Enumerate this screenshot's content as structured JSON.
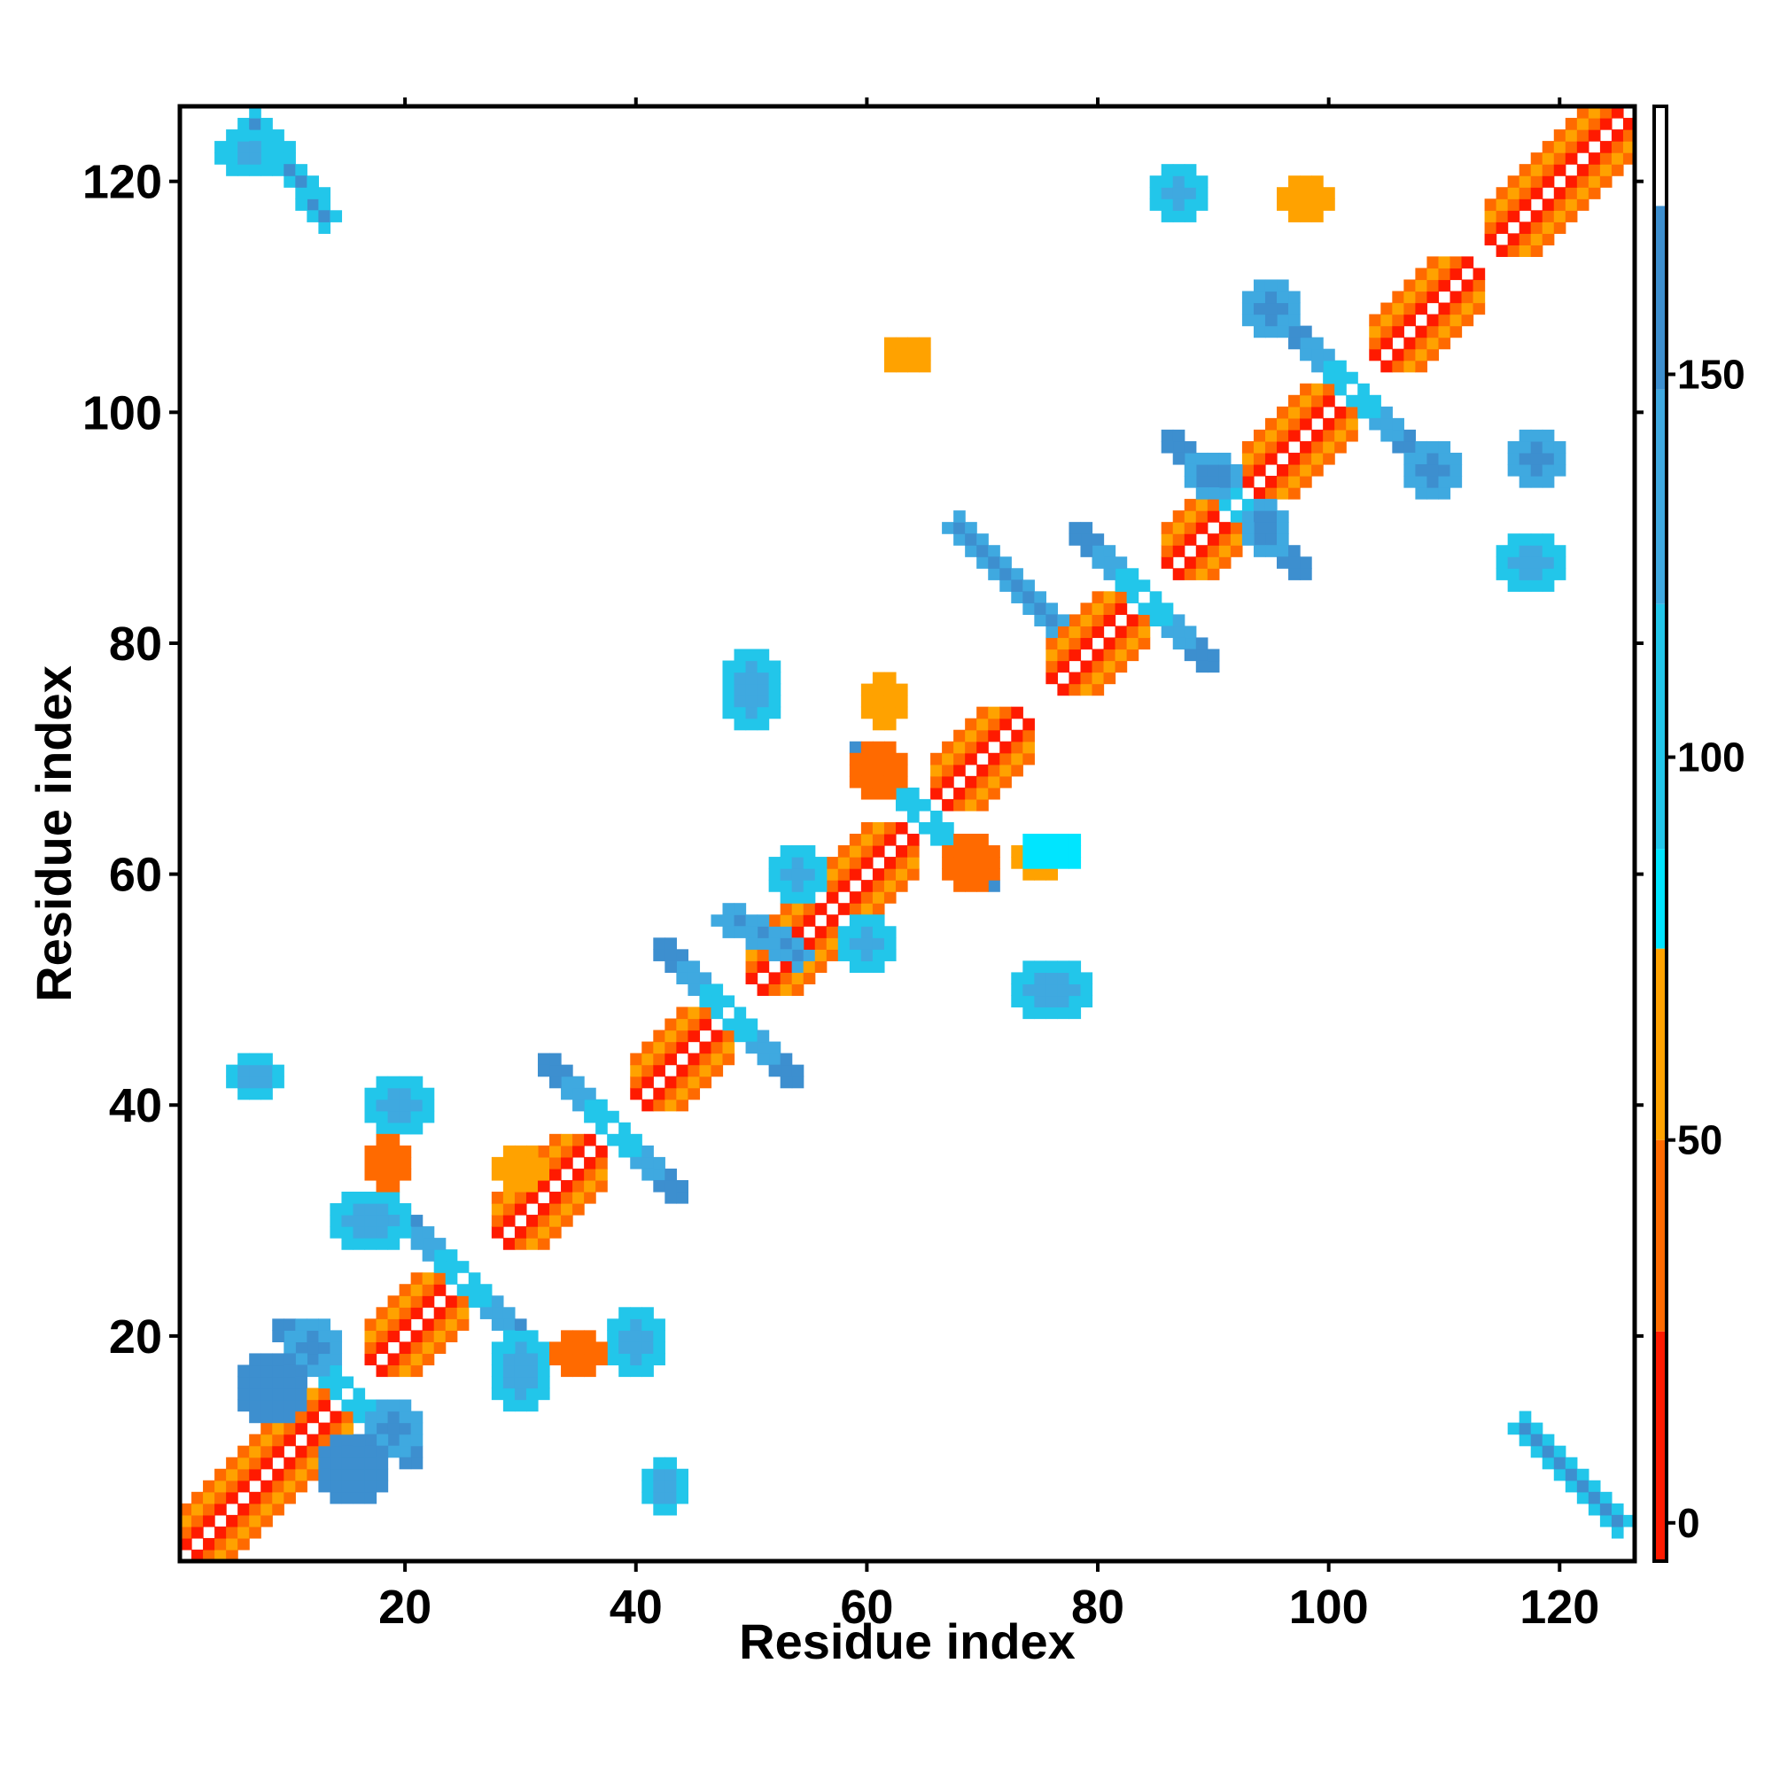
{
  "chart_data": {
    "type": "heatmap",
    "title": "",
    "xlabel": "Residue index",
    "ylabel": "Residue index",
    "xlim": [
      0.5,
      126.5
    ],
    "ylim": [
      0.5,
      126.5
    ],
    "x_ticks": [
      "20",
      "40",
      "60",
      "80",
      "100",
      "120"
    ],
    "y_ticks": [
      "20",
      "40",
      "60",
      "80",
      "100",
      "120"
    ],
    "colorbar": {
      "range": [
        -5,
        185
      ],
      "ticks": [
        "0",
        "50",
        "100",
        "150"
      ],
      "bands": [
        {
          "from": -5,
          "to": 25,
          "color": "#ff1a00"
        },
        {
          "from": 25,
          "to": 50,
          "color": "#ff6a00"
        },
        {
          "from": 50,
          "to": 75,
          "color": "#ffa200"
        },
        {
          "from": 75,
          "to": 88,
          "color": "#00e5ff"
        },
        {
          "from": 88,
          "to": 120,
          "color": "#22c6ea"
        },
        {
          "from": 120,
          "to": 148,
          "color": "#3fa9e0"
        },
        {
          "from": 148,
          "to": 172,
          "color": "#3d8fcf"
        },
        {
          "from": 172,
          "to": 185,
          "color": "#ffffff"
        }
      ]
    },
    "diagonal_helices": [
      [
        1,
        14
      ],
      [
        17,
        24
      ],
      [
        28,
        36
      ],
      [
        40,
        47
      ],
      [
        50,
        56
      ],
      [
        57,
        63
      ],
      [
        66,
        73
      ],
      [
        76,
        83
      ],
      [
        86,
        91
      ],
      [
        93,
        101
      ],
      [
        104,
        112
      ],
      [
        114,
        126
      ]
    ],
    "diagonal_beta_junctions": [
      15,
      25,
      38,
      48,
      65,
      84,
      92,
      102
    ],
    "offdiagonal_patches": [
      {
        "x": [
          7,
          13
        ],
        "y": [
          117,
          125
        ],
        "shape": "antidiagonal",
        "value": 140
      },
      {
        "x": [
          117,
          125
        ],
        "y": [
          4,
          12
        ],
        "shape": "antidiagonal",
        "value": 140
      },
      {
        "x": [
          5,
          9
        ],
        "y": [
          41,
          44
        ],
        "shape": "block",
        "value": 95
      },
      {
        "x": [
          41,
          44
        ],
        "y": [
          5,
          9
        ],
        "shape": "block",
        "value": 95
      },
      {
        "x": [
          17,
          22
        ],
        "y": [
          38,
          42
        ],
        "shape": "block",
        "value": 90
      },
      {
        "x": [
          38,
          42
        ],
        "y": [
          17,
          22
        ],
        "shape": "block",
        "value": 90
      },
      {
        "x": [
          14,
          20
        ],
        "y": [
          28,
          32
        ],
        "shape": "block",
        "value": 110
      },
      {
        "x": [
          28,
          32
        ],
        "y": [
          14,
          20
        ],
        "shape": "block",
        "value": 110
      },
      {
        "x": [
          10,
          14
        ],
        "y": [
          17,
          21
        ],
        "shape": "block",
        "value": 140
      },
      {
        "x": [
          17,
          21
        ],
        "y": [
          10,
          14
        ],
        "shape": "block",
        "value": 140
      },
      {
        "x": [
          13,
          18
        ],
        "y": [
          6,
          11
        ],
        "shape": "block",
        "value": 150
      },
      {
        "x": [
          6,
          11
        ],
        "y": [
          13,
          18
        ],
        "shape": "block",
        "value": 150
      },
      {
        "x": [
          17,
          20
        ],
        "y": [
          33,
          37
        ],
        "shape": "block",
        "value": 35
      },
      {
        "x": [
          33,
          37
        ],
        "y": [
          17,
          20
        ],
        "shape": "block",
        "value": 35
      },
      {
        "x": [
          28,
          32
        ],
        "y": [
          33,
          36
        ],
        "shape": "block",
        "value": 60
      },
      {
        "x": [
          48,
          52
        ],
        "y": [
          73,
          79
        ],
        "shape": "block",
        "value": 95
      },
      {
        "x": [
          73,
          79
        ],
        "y": [
          48,
          52
        ],
        "shape": "block",
        "value": 95
      },
      {
        "x": [
          52,
          56
        ],
        "y": [
          58,
          62
        ],
        "shape": "block",
        "value": 100
      },
      {
        "x": [
          58,
          62
        ],
        "y": [
          52,
          56
        ],
        "shape": "block",
        "value": 100
      },
      {
        "x": [
          60,
          63
        ],
        "y": [
          73,
          77
        ],
        "shape": "block",
        "value": 65
      },
      {
        "x": [
          73,
          77
        ],
        "y": [
          60,
          63
        ],
        "shape": "block",
        "value": 65
      },
      {
        "x": [
          59,
          63
        ],
        "y": [
          67,
          71
        ],
        "shape": "block",
        "value": 45
      },
      {
        "x": [
          67,
          71
        ],
        "y": [
          59,
          63
        ],
        "shape": "block",
        "value": 45
      },
      {
        "x": [
          74,
          78
        ],
        "y": [
          61,
          63
        ],
        "shape": "block",
        "value": 80
      },
      {
        "x": [
          88,
          92
        ],
        "y": [
          93,
          96
        ],
        "shape": "block",
        "value": 120
      },
      {
        "x": [
          93,
          96
        ],
        "y": [
          88,
          92
        ],
        "shape": "block",
        "value": 120
      },
      {
        "x": [
          93,
          97
        ],
        "y": [
          107,
          111
        ],
        "shape": "block",
        "value": 140
      },
      {
        "x": [
          107,
          111
        ],
        "y": [
          93,
          97
        ],
        "shape": "block",
        "value": 140
      },
      {
        "x": [
          96,
          100
        ],
        "y": [
          117,
          120
        ],
        "shape": "block",
        "value": 55
      },
      {
        "x": [
          85,
          89
        ],
        "y": [
          117,
          121
        ],
        "shape": "block",
        "value": 100
      },
      {
        "x": [
          115,
          120
        ],
        "y": [
          85,
          89
        ],
        "shape": "block",
        "value": 100
      },
      {
        "x": [
          116,
          120
        ],
        "y": [
          94,
          98
        ],
        "shape": "block",
        "value": 120
      },
      {
        "x": [
          62,
          65
        ],
        "y": [
          104,
          106
        ],
        "shape": "block",
        "value": 55
      },
      {
        "x": [
          4,
          9
        ],
        "y": [
          121,
          124
        ],
        "shape": "block",
        "value": 110
      },
      {
        "x": [
          48,
          54
        ],
        "y": [
          53,
          56
        ],
        "shape": "antidiagonal",
        "value": 145
      },
      {
        "x": [
          68,
          76
        ],
        "y": [
          82,
          90
        ],
        "shape": "antidiagonal",
        "value": 145
      }
    ]
  }
}
